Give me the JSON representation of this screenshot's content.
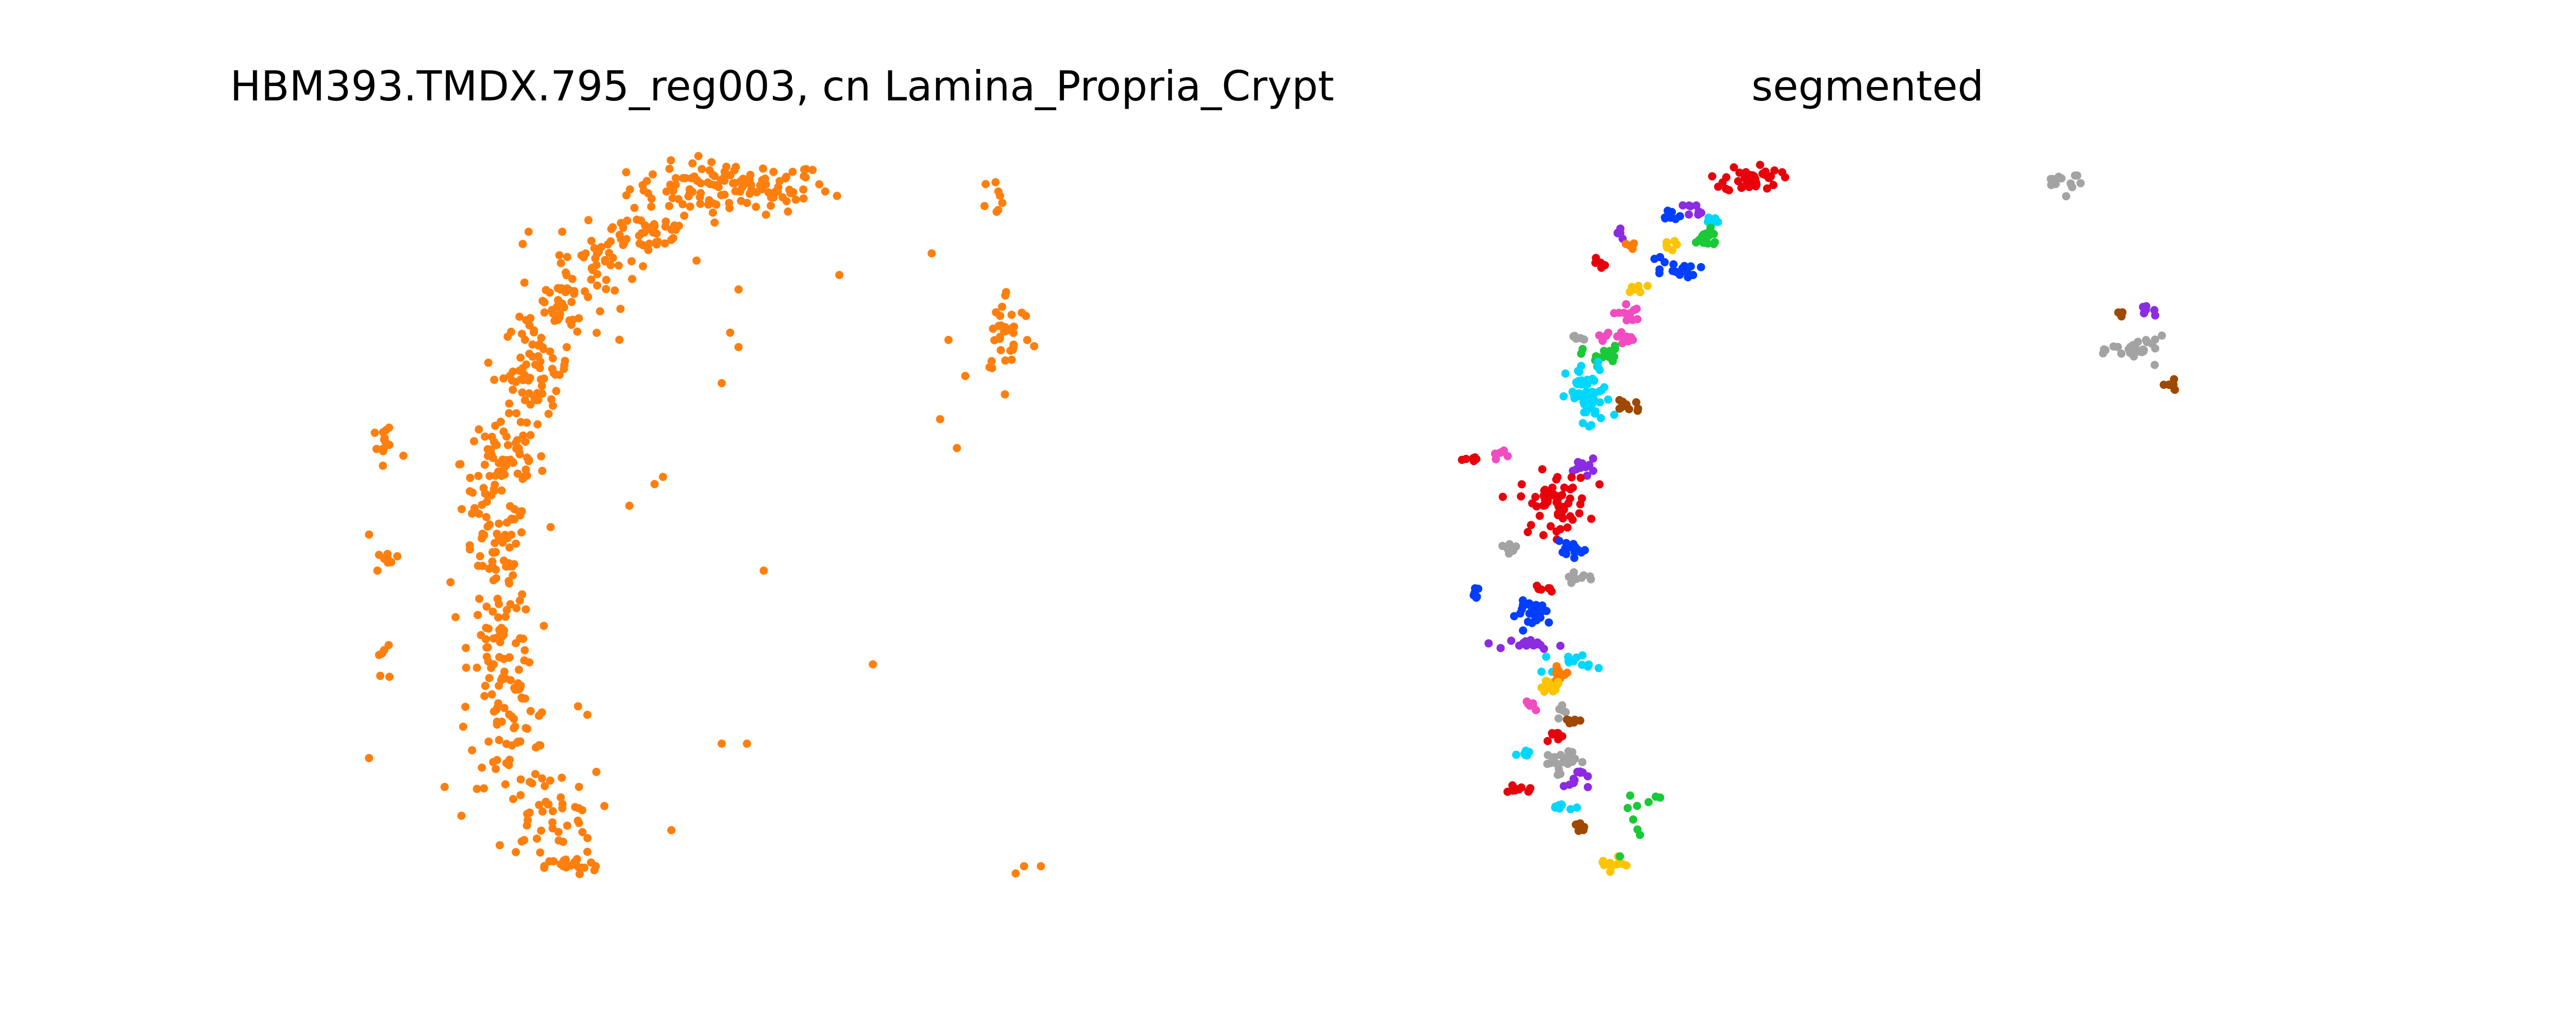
{
  "chart_data": [
    {
      "type": "scatter",
      "title": "HBM393.TMDX.795_reg003, cn Lamina_Propria_Crypt",
      "xlabel": "",
      "ylabel": "",
      "xlim": [
        0,
        100
      ],
      "ylim": [
        0,
        100
      ],
      "grid": false,
      "axes_visible": false,
      "point_color": "#ff7f0e",
      "clusters": [
        {
          "x": 44,
          "y": 96,
          "sx": 6,
          "sy": 1.8,
          "n": 120
        },
        {
          "x": 34,
          "y": 90,
          "sx": 3,
          "sy": 1.5,
          "n": 40
        },
        {
          "x": 28,
          "y": 86,
          "sx": 2.5,
          "sy": 2,
          "n": 35
        },
        {
          "x": 24,
          "y": 80,
          "sx": 2.5,
          "sy": 2.5,
          "n": 40
        },
        {
          "x": 21,
          "y": 71,
          "sx": 2,
          "sy": 3.5,
          "n": 70
        },
        {
          "x": 17,
          "y": 58,
          "sx": 2.5,
          "sy": 3.5,
          "n": 70
        },
        {
          "x": 16,
          "y": 45,
          "sx": 2,
          "sy": 4,
          "n": 60
        },
        {
          "x": 17,
          "y": 33,
          "sx": 2,
          "sy": 3.5,
          "n": 50
        },
        {
          "x": 18,
          "y": 21,
          "sx": 2.5,
          "sy": 4,
          "n": 60
        },
        {
          "x": 22,
          "y": 9,
          "sx": 3,
          "sy": 3,
          "n": 40
        },
        {
          "x": 25,
          "y": 2,
          "sx": 1.5,
          "sy": 0.6,
          "n": 20
        },
        {
          "x": 3,
          "y": 60,
          "sx": 1.2,
          "sy": 2.5,
          "n": 14
        },
        {
          "x": 3,
          "y": 45,
          "sx": 0.8,
          "sy": 1.5,
          "n": 8
        },
        {
          "x": 3,
          "y": 30,
          "sx": 0.8,
          "sy": 2,
          "n": 6
        },
        {
          "x": 76,
          "y": 95,
          "sx": 1,
          "sy": 1.5,
          "n": 8
        },
        {
          "x": 77,
          "y": 76,
          "sx": 1.5,
          "sy": 3,
          "n": 35
        }
      ],
      "points": [
        [
          1,
          17
        ],
        [
          10,
          13
        ],
        [
          12,
          9
        ],
        [
          26,
          13
        ],
        [
          26,
          8
        ],
        [
          27,
          4
        ],
        [
          28,
          2
        ],
        [
          37,
          7
        ],
        [
          32,
          52
        ],
        [
          35,
          55
        ],
        [
          48,
          43
        ],
        [
          43,
          69
        ],
        [
          44,
          76
        ],
        [
          45,
          82
        ],
        [
          40,
          86
        ],
        [
          24,
          90
        ],
        [
          31,
          89
        ],
        [
          45,
          74
        ],
        [
          27,
          23
        ],
        [
          13,
          54
        ],
        [
          43,
          19
        ],
        [
          46,
          19
        ],
        [
          61,
          30
        ],
        [
          79,
          2
        ],
        [
          81,
          2
        ],
        [
          78,
          1
        ],
        [
          68,
          87
        ],
        [
          57,
          84
        ],
        [
          69,
          64
        ],
        [
          71,
          60
        ],
        [
          70,
          75
        ],
        [
          72,
          70
        ],
        [
          15,
          38
        ],
        [
          36,
          56
        ],
        [
          1,
          48
        ],
        [
          2,
          43
        ],
        [
          20,
          90
        ],
        [
          46,
          94
        ]
      ]
    },
    {
      "type": "scatter",
      "title": "segmented",
      "xlabel": "",
      "ylabel": "",
      "xlim": [
        0,
        100
      ],
      "ylim": [
        0,
        100
      ],
      "grid": false,
      "axes_visible": false,
      "colors": [
        "#e8000b",
        "#023eff",
        "#8b2be2",
        "#1ac938",
        "#00d7ff",
        "#ffc400",
        "#f14cc1",
        "#a3a3a3",
        "#9f4800",
        "#ff7c00"
      ],
      "segments": [
        {
          "color": "#e8000b",
          "x": 33,
          "y": 97,
          "sx": 1.6,
          "sy": 1.2,
          "n": 40
        },
        {
          "color": "#8b2be2",
          "x": 26.5,
          "y": 92,
          "sx": 0.6,
          "sy": 0.5,
          "n": 8
        },
        {
          "color": "#023eff",
          "x": 23.5,
          "y": 91,
          "sx": 0.6,
          "sy": 0.5,
          "n": 8
        },
        {
          "color": "#00d7ff",
          "x": 28,
          "y": 90,
          "sx": 0.7,
          "sy": 0.5,
          "n": 8
        },
        {
          "color": "#1ac938",
          "x": 27.5,
          "y": 87,
          "sx": 1,
          "sy": 0.8,
          "n": 16
        },
        {
          "color": "#ffc400",
          "x": 23,
          "y": 86,
          "sx": 0.6,
          "sy": 0.4,
          "n": 6
        },
        {
          "color": "#023eff",
          "x": 23.5,
          "y": 82,
          "sx": 1.5,
          "sy": 1.2,
          "n": 16
        },
        {
          "color": "#8b2be2",
          "x": 17.5,
          "y": 88,
          "sx": 0.4,
          "sy": 0.5,
          "n": 5
        },
        {
          "color": "#ff7c00",
          "x": 18.5,
          "y": 86,
          "sx": 0.4,
          "sy": 0.3,
          "n": 4
        },
        {
          "color": "#e8000b",
          "x": 15.5,
          "y": 83,
          "sx": 0.4,
          "sy": 0.5,
          "n": 5
        },
        {
          "color": "#ffc400",
          "x": 19.5,
          "y": 79,
          "sx": 0.6,
          "sy": 0.4,
          "n": 6
        },
        {
          "color": "#f14cc1",
          "x": 18.5,
          "y": 75,
          "sx": 0.8,
          "sy": 0.8,
          "n": 12
        },
        {
          "color": "#f14cc1",
          "x": 17,
          "y": 71,
          "sx": 1.1,
          "sy": 0.6,
          "n": 12
        },
        {
          "color": "#a3a3a3",
          "x": 13,
          "y": 71,
          "sx": 0.4,
          "sy": 0.4,
          "n": 5
        },
        {
          "color": "#1ac938",
          "x": 15.5,
          "y": 68,
          "sx": 1.1,
          "sy": 0.8,
          "n": 16
        },
        {
          "color": "#00d7ff",
          "x": 14,
          "y": 61,
          "sx": 1.3,
          "sy": 2.8,
          "n": 60
        },
        {
          "color": "#9f4800",
          "x": 18.5,
          "y": 60,
          "sx": 0.9,
          "sy": 0.7,
          "n": 12
        },
        {
          "color": "#8b2be2",
          "x": 13.5,
          "y": 50,
          "sx": 0.6,
          "sy": 0.6,
          "n": 10
        },
        {
          "color": "#f14cc1",
          "x": 3.5,
          "y": 52,
          "sx": 0.5,
          "sy": 0.4,
          "n": 6
        },
        {
          "color": "#e8000b",
          "x": 0.5,
          "y": 51,
          "sx": 0.7,
          "sy": 0.3,
          "n": 6
        },
        {
          "color": "#e8000b",
          "x": 10,
          "y": 44,
          "sx": 2,
          "sy": 2.5,
          "n": 60
        },
        {
          "color": "#a3a3a3",
          "x": 5,
          "y": 37,
          "sx": 0.6,
          "sy": 0.4,
          "n": 8
        },
        {
          "color": "#023eff",
          "x": 12,
          "y": 36,
          "sx": 0.9,
          "sy": 0.8,
          "n": 14
        },
        {
          "color": "#a3a3a3",
          "x": 12.5,
          "y": 32,
          "sx": 1,
          "sy": 0.4,
          "n": 8
        },
        {
          "color": "#e8000b",
          "x": 9,
          "y": 30,
          "sx": 0.6,
          "sy": 0.3,
          "n": 6
        },
        {
          "color": "#023eff",
          "x": 0.8,
          "y": 29,
          "sx": 0.3,
          "sy": 0.7,
          "n": 6
        },
        {
          "color": "#023eff",
          "x": 8,
          "y": 26,
          "sx": 1.2,
          "sy": 1,
          "n": 30
        },
        {
          "color": "#8b2be2",
          "x": 8,
          "y": 21,
          "sx": 1.5,
          "sy": 0.4,
          "n": 16
        },
        {
          "color": "#00d7ff",
          "x": 11.5,
          "y": 18,
          "sx": 1.4,
          "sy": 0.9,
          "n": 14
        },
        {
          "color": "#ff7c00",
          "x": 10.5,
          "y": 16,
          "sx": 0.6,
          "sy": 0.6,
          "n": 10
        },
        {
          "color": "#ffc400",
          "x": 9.5,
          "y": 14,
          "sx": 0.8,
          "sy": 0.5,
          "n": 14
        },
        {
          "color": "#f14cc1",
          "x": 7.5,
          "y": 11,
          "sx": 0.4,
          "sy": 0.5,
          "n": 6
        },
        {
          "color": "#a3a3a3",
          "x": 11,
          "y": 10,
          "sx": 0.4,
          "sy": 0.4,
          "n": 5
        },
        {
          "color": "#9f4800",
          "x": 12,
          "y": 8.5,
          "sx": 0.5,
          "sy": 0.4,
          "n": 6
        },
        {
          "color": "#e8000b",
          "x": 10,
          "y": 6,
          "sx": 0.7,
          "sy": 0.4,
          "n": 8
        },
        {
          "color": "#00d7ff",
          "x": 7,
          "y": 3,
          "sx": 0.6,
          "sy": 0.4,
          "n": 8
        },
        {
          "color": "#a3a3a3",
          "x": 10.5,
          "y": 2,
          "sx": 1,
          "sy": 1,
          "n": 22
        },
        {
          "color": "#8b2be2",
          "x": 12.5,
          "y": -1,
          "sx": 0.7,
          "sy": 1,
          "n": 12
        },
        {
          "color": "#e8000b",
          "x": 6,
          "y": -3,
          "sx": 0.8,
          "sy": 0.4,
          "n": 10
        },
        {
          "color": "#00d7ff",
          "x": 11,
          "y": -5.5,
          "sx": 0.6,
          "sy": 0.3,
          "n": 8
        },
        {
          "color": "#9f4800",
          "x": 13,
          "y": -9,
          "sx": 0.5,
          "sy": 0.5,
          "n": 8
        },
        {
          "color": "#ffc400",
          "x": 16.5,
          "y": -15,
          "sx": 0.8,
          "sy": 0.5,
          "n": 12
        },
        {
          "color": "#1ac938",
          "x": 20,
          "y": -8,
          "sx": 2,
          "sy": 4,
          "n": 10
        },
        {
          "color": "#a3a3a3",
          "x": 69,
          "y": 97,
          "sx": 1.3,
          "sy": 1.2,
          "n": 12
        },
        {
          "color": "#9f4800",
          "x": 76,
          "y": 75,
          "sx": 0.4,
          "sy": 0.4,
          "n": 5
        },
        {
          "color": "#8b2be2",
          "x": 79,
          "y": 75,
          "sx": 0.5,
          "sy": 0.4,
          "n": 6
        },
        {
          "color": "#a3a3a3",
          "x": 78,
          "y": 69,
          "sx": 1.6,
          "sy": 1,
          "n": 28
        },
        {
          "color": "#9f4800",
          "x": 81.5,
          "y": 63,
          "sx": 0.6,
          "sy": 0.4,
          "n": 8
        }
      ]
    }
  ]
}
